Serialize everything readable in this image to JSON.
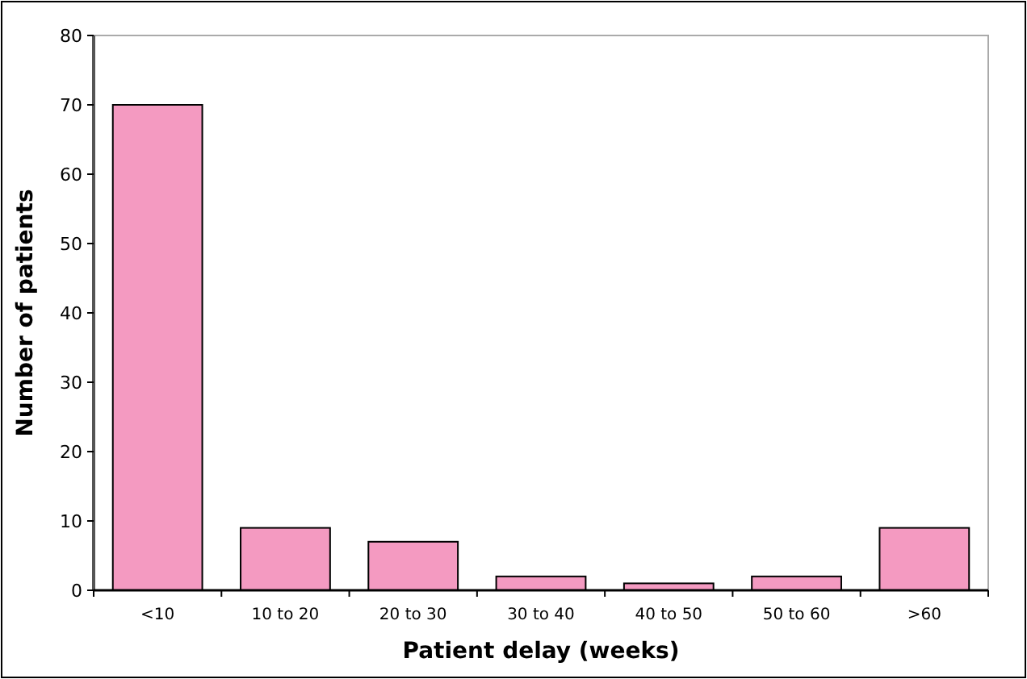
{
  "chart_data": {
    "type": "bar",
    "xlabel": "Patient delay (weeks)",
    "ylabel": "Number of patients",
    "categories": [
      "<10",
      "10 to 20",
      "20 to 30",
      "30 to 40",
      "40 to 50",
      "50 to 60",
      ">60"
    ],
    "values": [
      70,
      9,
      7,
      2,
      1,
      2,
      9
    ],
    "color": "#f49ac1",
    "ylim": [
      0,
      80
    ],
    "yticks": [
      0,
      10,
      20,
      30,
      40,
      50,
      60,
      70,
      80
    ],
    "grid": false
  }
}
